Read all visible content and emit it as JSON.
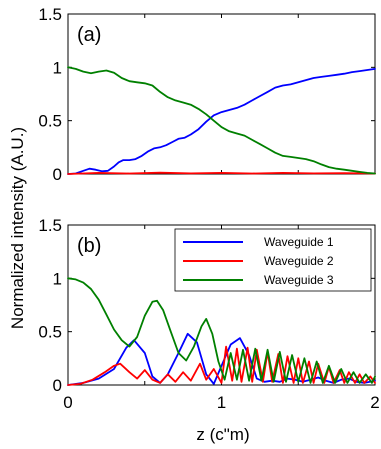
{
  "figure": {
    "ylabel": "Normalized intensity (A.U.)",
    "xlabel": "z (c\"m)"
  },
  "chart_data": [
    {
      "type": "line",
      "panel_label": "(a)",
      "xlim": [
        0,
        2
      ],
      "ylim": [
        0,
        1.5
      ],
      "yticks": [
        "0",
        "0.5",
        "1",
        "1.5"
      ],
      "xticks": [],
      "grid": false,
      "series": [
        {
          "color": "#0000ff",
          "x": [
            0,
            0.05,
            0.1,
            0.14,
            0.18,
            0.22,
            0.26,
            0.3,
            0.33,
            0.36,
            0.4,
            0.44,
            0.48,
            0.52,
            0.56,
            0.6,
            0.64,
            0.68,
            0.72,
            0.76,
            0.8,
            0.85,
            0.9,
            0.95,
            1.0,
            1.05,
            1.1,
            1.15,
            1.2,
            1.25,
            1.3,
            1.35,
            1.4,
            1.45,
            1.5,
            1.55,
            1.6,
            1.65,
            1.7,
            1.75,
            1.8,
            1.85,
            1.9,
            1.95,
            2.0
          ],
          "y": [
            0,
            0.005,
            0.03,
            0.05,
            0.04,
            0.025,
            0.03,
            0.07,
            0.11,
            0.13,
            0.13,
            0.14,
            0.17,
            0.21,
            0.24,
            0.25,
            0.27,
            0.3,
            0.33,
            0.34,
            0.37,
            0.42,
            0.49,
            0.55,
            0.58,
            0.6,
            0.62,
            0.65,
            0.69,
            0.73,
            0.77,
            0.81,
            0.83,
            0.84,
            0.86,
            0.88,
            0.9,
            0.91,
            0.92,
            0.93,
            0.94,
            0.955,
            0.965,
            0.975,
            0.985
          ]
        },
        {
          "color": "#ff0000",
          "x": [
            0,
            0.2,
            0.4,
            0.6,
            0.8,
            1.0,
            1.2,
            1.4,
            1.6,
            1.8,
            2.0
          ],
          "y": [
            0,
            0.01,
            0.005,
            0.012,
            0.006,
            0.01,
            0.005,
            0.01,
            0.006,
            0.008,
            0.005
          ]
        },
        {
          "color": "#008000",
          "x": [
            0,
            0.05,
            0.1,
            0.15,
            0.2,
            0.25,
            0.3,
            0.35,
            0.4,
            0.45,
            0.5,
            0.55,
            0.6,
            0.65,
            0.7,
            0.75,
            0.8,
            0.85,
            0.9,
            0.95,
            1.0,
            1.05,
            1.1,
            1.15,
            1.2,
            1.25,
            1.3,
            1.35,
            1.4,
            1.45,
            1.5,
            1.55,
            1.6,
            1.65,
            1.7,
            1.75,
            1.8,
            1.85,
            1.9,
            1.95,
            2.0
          ],
          "y": [
            1.0,
            0.985,
            0.96,
            0.945,
            0.96,
            0.97,
            0.95,
            0.9,
            0.87,
            0.86,
            0.85,
            0.83,
            0.77,
            0.72,
            0.69,
            0.67,
            0.65,
            0.61,
            0.56,
            0.5,
            0.44,
            0.4,
            0.38,
            0.36,
            0.32,
            0.28,
            0.24,
            0.2,
            0.17,
            0.16,
            0.15,
            0.14,
            0.12,
            0.09,
            0.065,
            0.05,
            0.04,
            0.03,
            0.02,
            0.01,
            0.005
          ]
        }
      ]
    },
    {
      "type": "line",
      "panel_label": "(b)",
      "xlim": [
        0,
        2
      ],
      "ylim": [
        0,
        1.5
      ],
      "yticks": [
        "0",
        "0.5",
        "1",
        "1.5"
      ],
      "xticks": [
        "0",
        "1",
        "2"
      ],
      "grid": false,
      "legend_position": "top-right",
      "series": [
        {
          "name": "Waveguide 1",
          "color": "#0000ff",
          "x": [
            0,
            0.1,
            0.2,
            0.3,
            0.38,
            0.43,
            0.5,
            0.55,
            0.6,
            0.65,
            0.72,
            0.78,
            0.84,
            0.9,
            0.95,
            1.0,
            1.06,
            1.12,
            1.18,
            1.23,
            1.28,
            1.33,
            1.38,
            1.43,
            1.48,
            1.53,
            1.58,
            1.63,
            1.68,
            1.73,
            1.78,
            1.83,
            1.88,
            1.93,
            2.0
          ],
          "y": [
            0,
            0.02,
            0.06,
            0.15,
            0.35,
            0.42,
            0.3,
            0.08,
            0.02,
            0.1,
            0.3,
            0.48,
            0.4,
            0.1,
            0.01,
            0.18,
            0.38,
            0.44,
            0.28,
            0.06,
            0.03,
            0.04,
            0.03,
            0.06,
            0.05,
            0.03,
            0.05,
            0.07,
            0.04,
            0.02,
            0.05,
            0.06,
            0.03,
            0.02,
            0.04
          ]
        },
        {
          "name": "Waveguide 2",
          "color": "#ff0000",
          "x": [
            0,
            0.08,
            0.16,
            0.24,
            0.3,
            0.34,
            0.4,
            0.45,
            0.5,
            0.55,
            0.6,
            0.65,
            0.7,
            0.75,
            0.8,
            0.86,
            0.9,
            0.95,
            1.0,
            1.03,
            1.07,
            1.1,
            1.13,
            1.17,
            1.2,
            1.23,
            1.27,
            1.3,
            1.33,
            1.37,
            1.4,
            1.43,
            1.47,
            1.5,
            1.53,
            1.57,
            1.6,
            1.63,
            1.67,
            1.7,
            1.73,
            1.77,
            1.8,
            1.83,
            1.87,
            1.9,
            1.93,
            1.97,
            2.0
          ],
          "y": [
            0,
            0.01,
            0.05,
            0.12,
            0.18,
            0.2,
            0.12,
            0.06,
            0.14,
            0.05,
            0.02,
            0.1,
            0.03,
            0.12,
            0.04,
            0.2,
            0.05,
            0.15,
            0.02,
            0.36,
            0.04,
            0.34,
            0.03,
            0.35,
            0.03,
            0.33,
            0.03,
            0.31,
            0.03,
            0.29,
            0.02,
            0.27,
            0.02,
            0.25,
            0.02,
            0.22,
            0.02,
            0.2,
            0.02,
            0.17,
            0.02,
            0.14,
            0.02,
            0.12,
            0.02,
            0.1,
            0.02,
            0.08,
            0.02
          ]
        },
        {
          "name": "Waveguide 3",
          "color": "#008000",
          "x": [
            0,
            0.05,
            0.1,
            0.15,
            0.2,
            0.25,
            0.3,
            0.35,
            0.4,
            0.45,
            0.5,
            0.55,
            0.58,
            0.62,
            0.67,
            0.72,
            0.77,
            0.82,
            0.87,
            0.9,
            0.94,
            0.98,
            1.02,
            1.06,
            1.1,
            1.14,
            1.18,
            1.22,
            1.26,
            1.3,
            1.34,
            1.38,
            1.42,
            1.46,
            1.5,
            1.54,
            1.58,
            1.62,
            1.66,
            1.7,
            1.74,
            1.78,
            1.82,
            1.86,
            1.9,
            1.94,
            1.98,
            2.0
          ],
          "y": [
            1.0,
            0.99,
            0.96,
            0.9,
            0.8,
            0.66,
            0.52,
            0.42,
            0.36,
            0.45,
            0.65,
            0.78,
            0.79,
            0.7,
            0.5,
            0.3,
            0.23,
            0.36,
            0.55,
            0.62,
            0.48,
            0.22,
            0.05,
            0.3,
            0.05,
            0.33,
            0.04,
            0.34,
            0.04,
            0.33,
            0.03,
            0.31,
            0.03,
            0.28,
            0.03,
            0.25,
            0.02,
            0.22,
            0.02,
            0.18,
            0.02,
            0.15,
            0.02,
            0.12,
            0.02,
            0.1,
            0.02,
            0.08
          ]
        }
      ]
    }
  ]
}
